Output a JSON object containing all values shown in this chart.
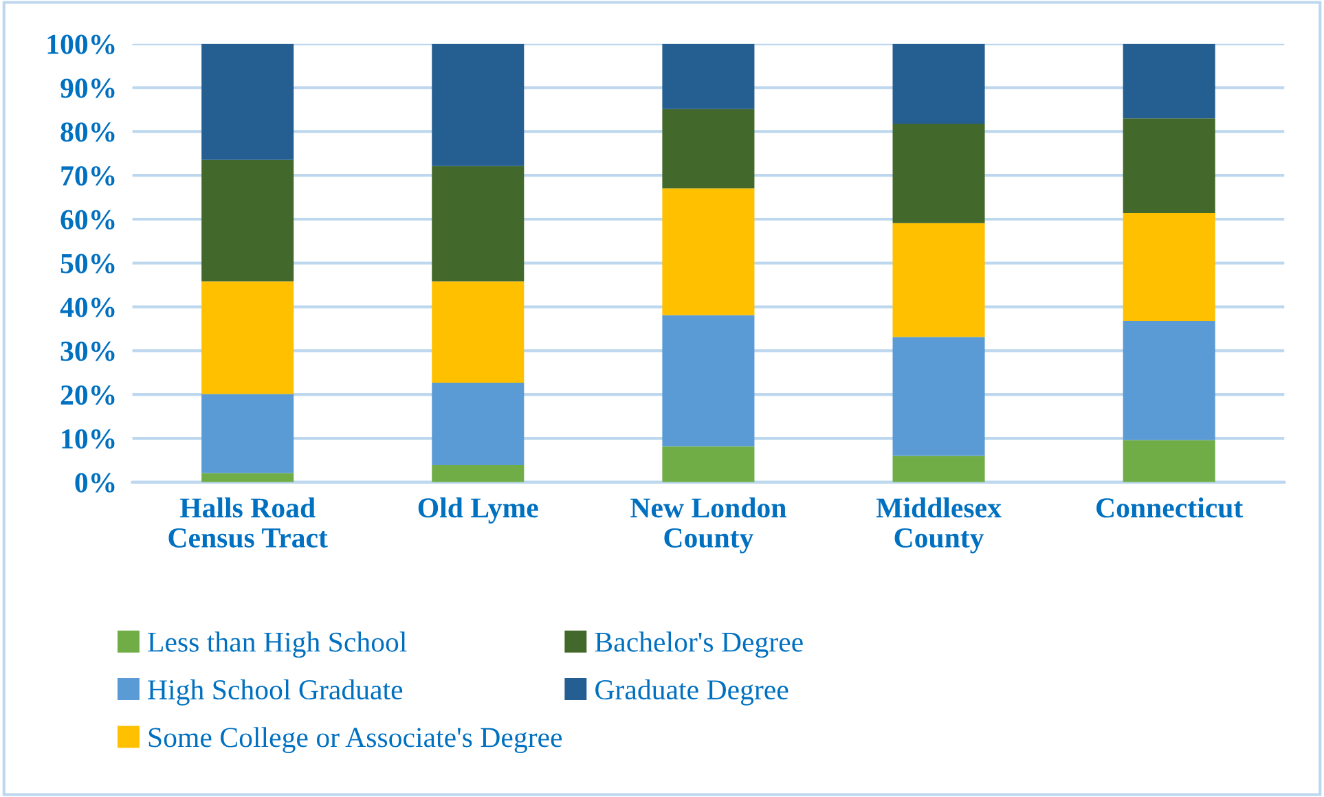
{
  "chart_data": {
    "type": "bar",
    "stacked": true,
    "categories": [
      "Halls Road\nCensus Tract",
      "Old Lyme",
      "New London\nCounty",
      "Middlesex\nCounty",
      "Connecticut"
    ],
    "series": [
      {
        "name": "Less than High School",
        "color": "#70ad47",
        "values": [
          2.1,
          3.9,
          8.2,
          6.0,
          9.6
        ]
      },
      {
        "name": "High School Graduate",
        "color": "#5b9bd5",
        "values": [
          18.0,
          18.8,
          29.9,
          27.1,
          27.2
        ]
      },
      {
        "name": "Some College or Associate's Degree",
        "color": "#ffc000",
        "values": [
          25.7,
          23.1,
          28.9,
          26.0,
          24.6
        ]
      },
      {
        "name": "Bachelor's Degree",
        "color": "#43682b",
        "values": [
          27.7,
          26.3,
          18.1,
          22.7,
          21.6
        ]
      },
      {
        "name": "Graduate Degree",
        "color": "#255e91",
        "values": [
          26.5,
          27.9,
          14.9,
          18.2,
          17.0
        ]
      }
    ],
    "ylim": [
      0,
      100
    ],
    "yticks": [
      {
        "value": 0,
        "label": "0%"
      },
      {
        "value": 10,
        "label": "10%"
      },
      {
        "value": 20,
        "label": "20%"
      },
      {
        "value": 30,
        "label": "30%"
      },
      {
        "value": 40,
        "label": "40%"
      },
      {
        "value": 50,
        "label": "50%"
      },
      {
        "value": 60,
        "label": "60%"
      },
      {
        "value": 70,
        "label": "70%"
      },
      {
        "value": 80,
        "label": "80%"
      },
      {
        "value": 90,
        "label": "90%"
      },
      {
        "value": 100,
        "label": "100%"
      }
    ],
    "grid": "y",
    "legend": "bottom"
  }
}
